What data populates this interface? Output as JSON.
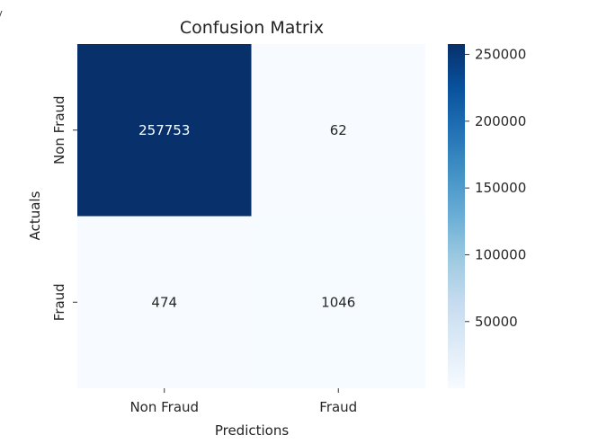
{
  "chart_data": {
    "type": "heatmap",
    "title": "Confusion Matrix",
    "xlabel": "Predictions",
    "ylabel": "Actuals",
    "x_categories": [
      "Non Fraud",
      "Fraud"
    ],
    "y_categories": [
      "Non Fraud",
      "Fraud"
    ],
    "values": [
      [
        257753,
        62
      ],
      [
        474,
        1046
      ]
    ],
    "cell_labels": [
      [
        "257753",
        "62"
      ],
      [
        "474",
        "1046"
      ]
    ],
    "colormap": "Blues",
    "color_low": "#f7fbff",
    "color_high": "#08306b",
    "colorbar": {
      "ticks": [
        50000,
        100000,
        150000,
        200000,
        250000
      ],
      "tick_labels": [
        "50000",
        "100000",
        "150000",
        "200000",
        "250000"
      ],
      "range": [
        62,
        257753
      ]
    },
    "grid": false,
    "legend": "colorbar-right"
  }
}
